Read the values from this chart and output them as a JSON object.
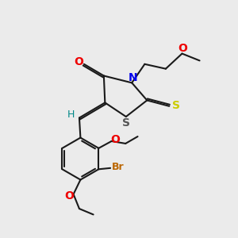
{
  "bg_color": "#ebebeb",
  "bond_color": "#1a1a1a",
  "N_color": "#0000ee",
  "O_color": "#ee0000",
  "S_color": "#cccc00",
  "S_ring_color": "#555555",
  "Br_color": "#bb6600",
  "H_color": "#008888",
  "lw": 1.5,
  "xlim": [
    0,
    10
  ],
  "ylim": [
    0,
    10
  ]
}
